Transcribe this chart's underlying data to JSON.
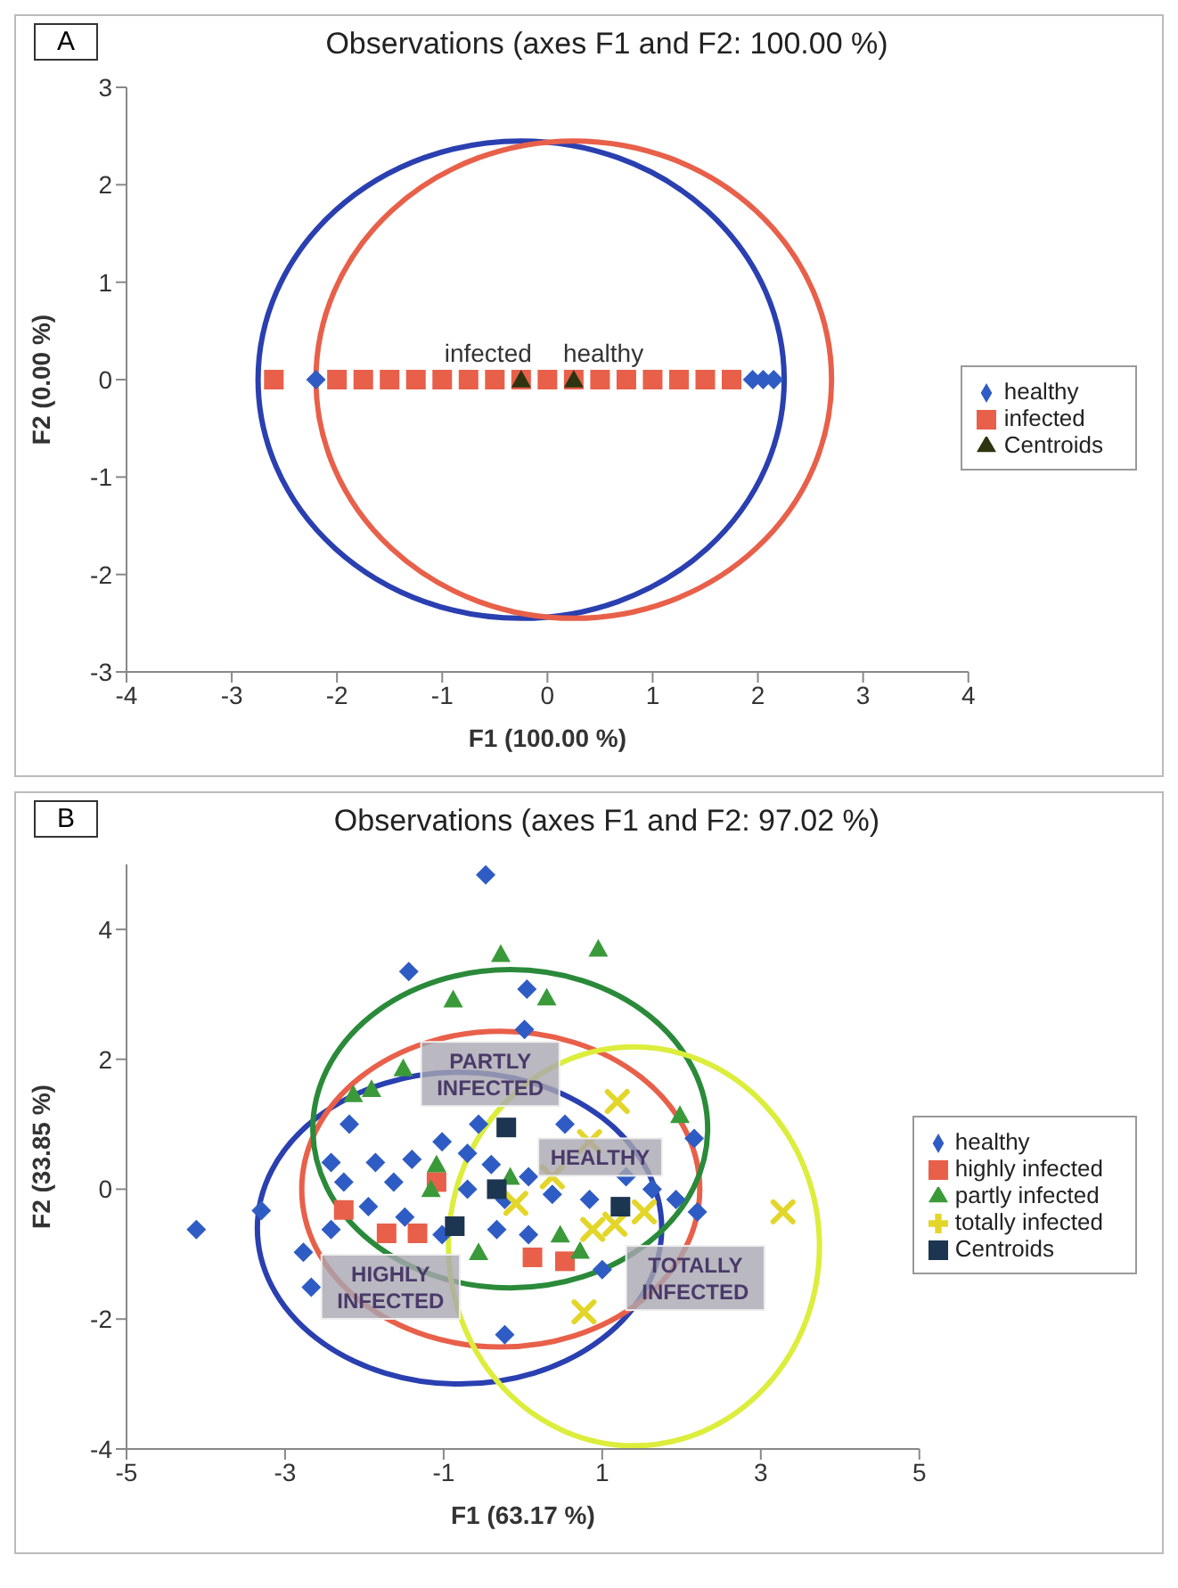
{
  "chart_data": [
    {
      "type": "scatter",
      "title": "Observations (axes F1 and F2: 100.00 %)",
      "xlabel": "F1 (100.00 %)",
      "ylabel": "F2 (0.00 %)",
      "xlim": [
        -4,
        4
      ],
      "xticks": [
        -4,
        -3,
        -2,
        -1,
        0,
        1,
        2,
        3,
        4
      ],
      "ylim": [
        -3,
        3
      ],
      "yticks": [
        -3,
        -2,
        -1,
        0,
        1,
        2,
        3
      ],
      "legend": "right",
      "annotations": [
        "A",
        {
          "text": "infected",
          "x": -0.25,
          "y": 0
        },
        {
          "text": "healthy",
          "x": 0.25,
          "y": 0
        }
      ],
      "series": [
        {
          "name": "healthy",
          "marker": "diamond",
          "color": "#2f5cc4",
          "x": [
            -2.2,
            1.95,
            2.05,
            2.15
          ],
          "values": [
            0,
            0,
            0,
            0
          ]
        },
        {
          "name": "infected",
          "marker": "square",
          "color": "#e8604a",
          "x": [
            -2.6,
            -2.0,
            -1.75,
            -1.5,
            -1.25,
            -1.0,
            -0.75,
            -0.5,
            -0.25,
            0,
            0.25,
            0.5,
            0.75,
            1.0,
            1.25,
            1.5,
            1.75
          ],
          "values": [
            0,
            0,
            0,
            0,
            0,
            0,
            0,
            0,
            0,
            0,
            0,
            0,
            0,
            0,
            0,
            0,
            0
          ]
        },
        {
          "name": "Centroids",
          "marker": "triangle",
          "color": "#2e3410",
          "x": [
            -0.25,
            0.25
          ],
          "values": [
            0,
            0
          ]
        }
      ]
    },
    {
      "type": "scatter",
      "title": "Observations (axes F1 and F2: 97.02 %)",
      "xlabel": "F1 (63.17 %)",
      "ylabel": "F2 (33.85 %)",
      "xlim": [
        -5,
        5
      ],
      "xticks": [
        -5,
        -3,
        -1,
        1,
        3,
        5
      ],
      "ylim": [
        -4,
        5
      ],
      "yticks": [
        -4,
        -2,
        0,
        2,
        4
      ],
      "legend": "right",
      "annotations": [
        "B",
        {
          "text": "PARTLY INFECTED",
          "x": -0.21,
          "y": 0.95
        },
        {
          "text": "HEALTHY",
          "x": -0.33,
          "y": 0
        },
        {
          "text": "HIGHLY INFECTED",
          "x": -0.86,
          "y": -0.57
        },
        {
          "text": "TOTALLY INFECTED",
          "x": 1.23,
          "y": -0.27
        }
      ],
      "series": [
        {
          "name": "healthy",
          "marker": "diamond",
          "color": "#2f5cc4",
          "x": [
            -0.47,
            -1.44,
            0.05,
            0.02,
            -4.12,
            -3.3,
            2.16,
            2.2,
            -0.23,
            -2.67,
            -2.77,
            -2.42,
            -1.86,
            -2.19,
            -1.4,
            -1.02,
            -0.7,
            -0.4,
            -0.56,
            -1.63,
            -2.26,
            -1.95,
            -1.49,
            -0.33,
            0.07,
            0.37,
            0.84,
            1.3,
            1.63,
            1.93,
            0.53,
            1.0,
            -2.42,
            -1.02,
            0.07,
            -0.7,
            -0.23
          ],
          "values": [
            4.84,
            3.35,
            3.08,
            2.46,
            -0.62,
            -0.33,
            0.78,
            -0.35,
            -2.24,
            -1.51,
            -0.97,
            0.41,
            0.41,
            1.0,
            0.46,
            0.73,
            0.55,
            0.38,
            1.0,
            0.11,
            0.11,
            -0.27,
            -0.43,
            -0.62,
            -0.7,
            -0.08,
            -0.16,
            0.19,
            0,
            -0.16,
            1.0,
            -1.24,
            -0.62,
            -0.7,
            0.19,
            0,
            -0.16
          ]
        },
        {
          "name": "highly infected",
          "marker": "square",
          "color": "#e8604a",
          "x": [
            -2.26,
            -1.72,
            -1.33,
            -1.09,
            0.12,
            0.53
          ],
          "values": [
            -0.32,
            -0.68,
            -0.68,
            0.11,
            -1.05,
            -1.11
          ]
        },
        {
          "name": "partly infected",
          "marker": "triangle",
          "color": "#3a9a3a",
          "x": [
            -0.28,
            0.95,
            -0.88,
            0.3,
            -1.51,
            -2.14,
            -1.91,
            1.98,
            -1.09,
            -1.16,
            -0.56,
            0.47,
            0.72,
            -0.16
          ],
          "values": [
            3.62,
            3.7,
            2.92,
            2.95,
            1.86,
            1.46,
            1.54,
            1.14,
            0.38,
            0,
            -0.97,
            -0.7,
            -0.95,
            0.19
          ]
        },
        {
          "name": "totally infected",
          "marker": "cross",
          "color": "#e3d62a",
          "x": [
            1.19,
            3.28,
            0.77,
            -0.09,
            0.88,
            1.53,
            1.16,
            0.84,
            0.37
          ],
          "values": [
            1.35,
            -0.35,
            -1.89,
            -0.22,
            -0.62,
            -0.35,
            -0.54,
            0.73,
            0.19
          ]
        },
        {
          "name": "Centroids",
          "marker": "square",
          "color": "#1c3550",
          "x": [
            -0.21,
            -0.33,
            -0.86,
            1.23
          ],
          "values": [
            0.95,
            0,
            -0.57,
            -0.27
          ]
        }
      ]
    }
  ]
}
